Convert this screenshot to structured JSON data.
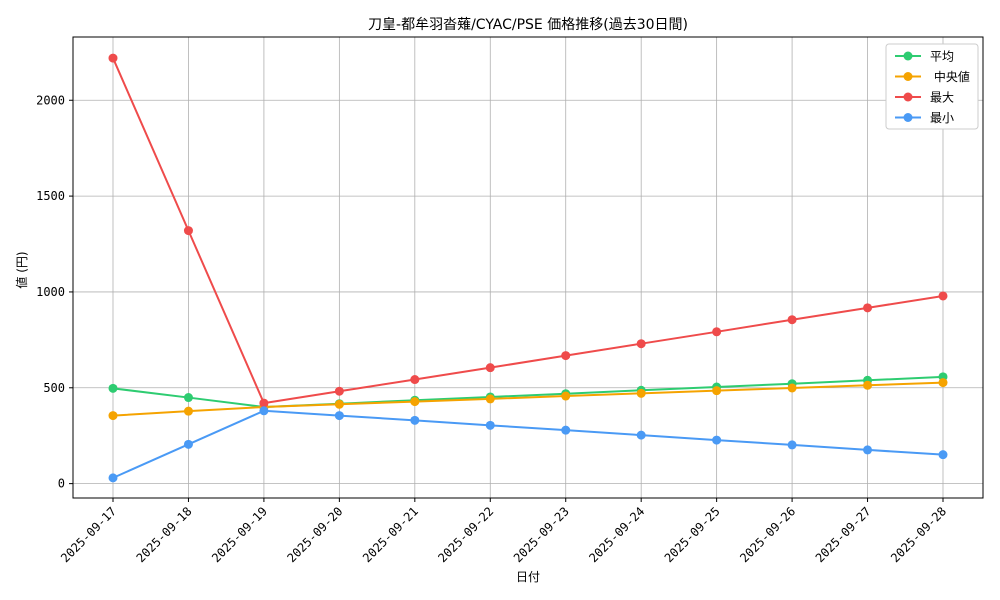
{
  "chart_data": {
    "type": "line",
    "title": "刀皇-都牟羽沓薙/CYAC/PSE 価格推移(過去30日間)",
    "xlabel": "日付",
    "ylabel": "値 (円)",
    "ylim": [
      -75,
      2330
    ],
    "yticks": [
      0,
      500,
      1000,
      1500,
      2000
    ],
    "grid": true,
    "legend_position": "top-right",
    "categories": [
      "2025-09-17",
      "2025-09-18",
      "2025-09-19",
      "2025-09-20",
      "2025-09-21",
      "2025-09-22",
      "2025-09-23",
      "2025-09-24",
      "2025-09-25",
      "2025-09-26",
      "2025-09-27",
      "2025-09-28"
    ],
    "series": [
      {
        "name": "平均",
        "color": "#2ecc71",
        "values": [
          497,
          449,
          400,
          417,
          435,
          452,
          469,
          487,
          504,
          521,
          539,
          557
        ]
      },
      {
        "name": " 中央値",
        "color": "#f5a300",
        "values": [
          355,
          378,
          400,
          414,
          428,
          442,
          457,
          471,
          485,
          499,
          513,
          527
        ]
      },
      {
        "name": "最大",
        "color": "#ef4b4b",
        "values": [
          2220,
          1320,
          420,
          482,
          543,
          605,
          668,
          730,
          792,
          855,
          917,
          979
        ]
      },
      {
        "name": "最小",
        "color": "#4a9af5",
        "values": [
          30,
          205,
          380,
          355,
          330,
          304,
          279,
          253,
          227,
          202,
          176,
          151
        ]
      }
    ]
  }
}
